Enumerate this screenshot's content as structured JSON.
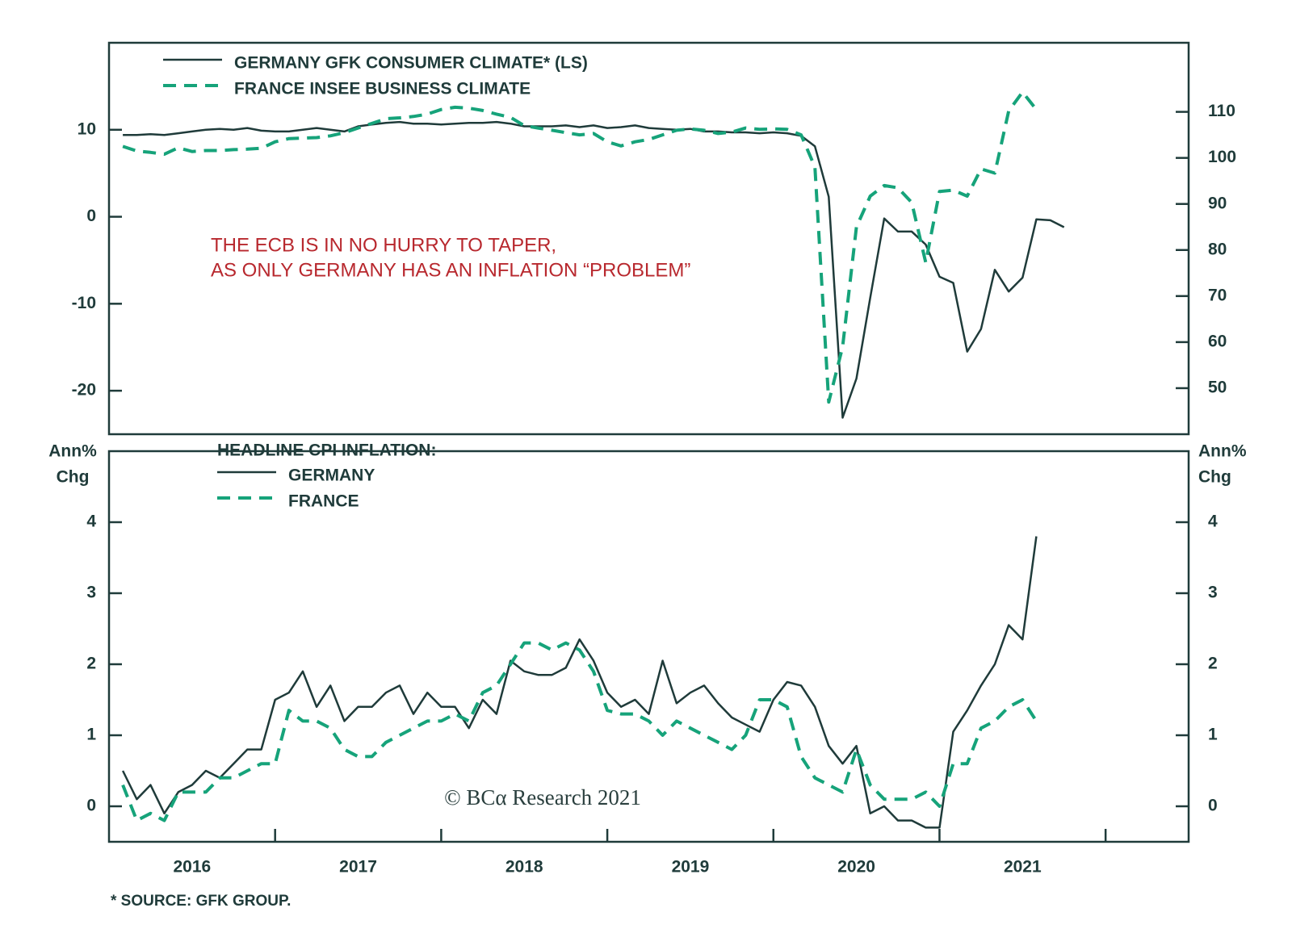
{
  "footnote": "* SOURCE: GFK GROUP.",
  "chart_data": [
    {
      "type": "line",
      "legend": "upper left",
      "annotation": [
        "THE ECB IS IN NO HURRY TO TAPER,",
        "AS ONLY GERMANY HAS AN INFLATION “PROBLEM”"
      ],
      "annotation_color": "#b8282e",
      "xlim": [
        2016,
        2022.5
      ],
      "ylim": [
        -25,
        20
      ],
      "yticks": [
        -20,
        -10,
        0,
        10
      ],
      "y2lim": [
        40,
        125
      ],
      "y2ticks": [
        50,
        60,
        70,
        80,
        90,
        100,
        110
      ],
      "x": [
        2016.083,
        2016.167,
        2016.25,
        2016.333,
        2016.417,
        2016.5,
        2016.583,
        2016.667,
        2016.75,
        2016.833,
        2016.917,
        2017,
        2017.083,
        2017.167,
        2017.25,
        2017.333,
        2017.417,
        2017.5,
        2017.583,
        2017.667,
        2017.75,
        2017.833,
        2017.917,
        2018,
        2018.083,
        2018.167,
        2018.25,
        2018.333,
        2018.417,
        2018.5,
        2018.583,
        2018.667,
        2018.75,
        2018.833,
        2018.917,
        2019,
        2019.083,
        2019.167,
        2019.25,
        2019.333,
        2019.417,
        2019.5,
        2019.583,
        2019.667,
        2019.75,
        2019.833,
        2019.917,
        2020,
        2020.083,
        2020.167,
        2020.25,
        2020.333,
        2020.417,
        2020.5,
        2020.583,
        2020.667,
        2020.75,
        2020.833,
        2020.917,
        2021,
        2021.083,
        2021.167,
        2021.25,
        2021.333,
        2021.417,
        2021.5,
        2021.583,
        2021.667,
        2021.75
      ],
      "series": [
        {
          "name": "GERMANY GFK CONSUMER CLIMATE* (LS)",
          "color": "#1f3b3a",
          "dash": false,
          "axis": "y",
          "values": [
            9.4,
            9.4,
            9.5,
            9.4,
            9.6,
            9.8,
            10.0,
            10.1,
            10.0,
            10.2,
            9.9,
            9.8,
            9.8,
            10.0,
            10.2,
            10.0,
            9.8,
            10.4,
            10.6,
            10.8,
            10.9,
            10.7,
            10.7,
            10.6,
            10.7,
            10.8,
            10.8,
            10.9,
            10.7,
            10.4,
            10.4,
            10.4,
            10.5,
            10.3,
            10.5,
            10.2,
            10.3,
            10.5,
            10.2,
            10.1,
            10.0,
            10.1,
            9.8,
            9.8,
            9.7,
            9.7,
            9.6,
            9.7,
            9.6,
            9.3,
            8.1,
            2.3,
            -23.1,
            -18.6,
            -9.3,
            -0.2,
            -1.7,
            -1.7,
            -3.2,
            -6.9,
            -7.6,
            -15.5,
            -12.9,
            -6.1,
            -8.6,
            -7.0,
            -0.3,
            -0.4,
            -1.2
          ]
        },
        {
          "name": "FRANCE INSEE BUSINESS CLIMATE",
          "color": "#16a37a",
          "dash": true,
          "axis": "y2",
          "values": [
            102.5,
            101.5,
            101.2,
            100.8,
            102.2,
            101.4,
            101.6,
            101.6,
            101.8,
            101.9,
            102.1,
            103.5,
            104.2,
            104.3,
            104.4,
            104.8,
            105.5,
            106.5,
            107.5,
            108.5,
            108.7,
            109.0,
            109.5,
            110.5,
            111.0,
            110.8,
            110.3,
            109.5,
            108.8,
            107.0,
            106.5,
            106.0,
            105.5,
            105.0,
            105.3,
            103.5,
            102.6,
            103.5,
            104.0,
            105.0,
            106.0,
            106.3,
            106.0,
            105.3,
            105.6,
            106.5,
            106.2,
            106.3,
            106.2,
            105.0,
            98,
            47,
            59,
            85,
            91.7,
            94,
            93.5,
            90.3,
            77.3,
            92.7,
            93,
            91.7,
            97.6,
            96.7,
            110.2,
            114.3,
            110.5,
            null,
            null
          ]
        }
      ]
    },
    {
      "type": "line",
      "legend": "upper left",
      "legend_title": "HEADLINE CPI INFLATION:",
      "ylabel_lines": [
        "Ann%",
        "Chg"
      ],
      "y2label_lines": [
        "Ann%",
        "Chg"
      ],
      "watermark": "© BCα Research 2021",
      "xlim": [
        2016,
        2022.5
      ],
      "xticks": [
        {
          "value": 2016.5,
          "label": "2016"
        },
        {
          "value": 2017.5,
          "label": "2017"
        },
        {
          "value": 2018.5,
          "label": "2018"
        },
        {
          "value": 2019.5,
          "label": "2019"
        },
        {
          "value": 2020.5,
          "label": "2020"
        },
        {
          "value": 2021.5,
          "label": "2021"
        }
      ],
      "year_ticks": [
        2017,
        2018,
        2019,
        2020,
        2021,
        2022
      ],
      "ylim": [
        -0.5,
        5
      ],
      "yticks": [
        0,
        1,
        2,
        3,
        4
      ],
      "y2lim": [
        -0.5,
        5
      ],
      "y2ticks": [
        0,
        1,
        2,
        3,
        4
      ],
      "x": [
        2016.083,
        2016.167,
        2016.25,
        2016.333,
        2016.417,
        2016.5,
        2016.583,
        2016.667,
        2016.75,
        2016.833,
        2016.917,
        2017,
        2017.083,
        2017.167,
        2017.25,
        2017.333,
        2017.417,
        2017.5,
        2017.583,
        2017.667,
        2017.75,
        2017.833,
        2017.917,
        2018,
        2018.083,
        2018.167,
        2018.25,
        2018.333,
        2018.417,
        2018.5,
        2018.583,
        2018.667,
        2018.75,
        2018.833,
        2018.917,
        2019,
        2019.083,
        2019.167,
        2019.25,
        2019.333,
        2019.417,
        2019.5,
        2019.583,
        2019.667,
        2019.75,
        2019.833,
        2019.917,
        2020,
        2020.083,
        2020.167,
        2020.25,
        2020.333,
        2020.417,
        2020.5,
        2020.583,
        2020.667,
        2020.75,
        2020.833,
        2020.917,
        2021,
        2021.083,
        2021.167,
        2021.25,
        2021.333,
        2021.417,
        2021.5,
        2021.583,
        2021.667,
        2021.75
      ],
      "series": [
        {
          "name": "GERMANY",
          "color": "#1f3b3a",
          "dash": false,
          "axis": "y",
          "values": [
            0.5,
            0.1,
            0.3,
            -0.1,
            0.2,
            0.3,
            0.5,
            0.4,
            0.6,
            0.8,
            0.8,
            1.5,
            1.6,
            1.9,
            1.4,
            1.7,
            1.2,
            1.4,
            1.4,
            1.6,
            1.7,
            1.3,
            1.6,
            1.4,
            1.4,
            1.1,
            1.5,
            1.3,
            2.05,
            1.9,
            1.85,
            1.85,
            1.95,
            2.35,
            2.05,
            1.6,
            1.4,
            1.5,
            1.3,
            2.05,
            1.45,
            1.6,
            1.7,
            1.45,
            1.25,
            1.15,
            1.05,
            1.5,
            1.75,
            1.7,
            1.4,
            0.85,
            0.6,
            0.85,
            -0.1,
            0.0,
            -0.2,
            -0.2,
            -0.3,
            -0.3,
            1.05,
            1.35,
            1.7,
            2.0,
            2.55,
            2.35,
            3.8,
            null,
            null
          ]
        },
        {
          "name": "FRANCE",
          "color": "#16a37a",
          "dash": true,
          "axis": "y",
          "values": [
            0.3,
            -0.2,
            -0.1,
            -0.2,
            0.2,
            0.2,
            0.2,
            0.4,
            0.4,
            0.5,
            0.6,
            0.6,
            1.35,
            1.2,
            1.2,
            1.1,
            0.8,
            0.7,
            0.7,
            0.9,
            1.0,
            1.1,
            1.2,
            1.2,
            1.3,
            1.2,
            1.6,
            1.7,
            2.0,
            2.3,
            2.3,
            2.2,
            2.3,
            2.2,
            1.9,
            1.35,
            1.3,
            1.3,
            1.2,
            1.0,
            1.2,
            1.1,
            1.0,
            0.9,
            0.8,
            1.0,
            1.5,
            1.5,
            1.4,
            0.7,
            0.4,
            0.3,
            0.2,
            0.8,
            0.3,
            0.1,
            0.1,
            0.1,
            0.2,
            0.0,
            0.6,
            0.6,
            1.1,
            1.2,
            1.4,
            1.5,
            1.2,
            null,
            null
          ]
        }
      ]
    }
  ]
}
